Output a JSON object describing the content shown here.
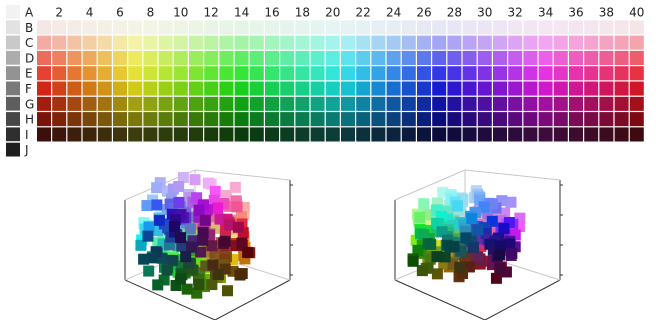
{
  "grid": {
    "row_labels": [
      "A",
      "B",
      "C",
      "D",
      "E",
      "F",
      "G",
      "H",
      "I",
      "J"
    ],
    "column_tick_labels": [
      "2",
      "4",
      "6",
      "8",
      "10",
      "12",
      "14",
      "16",
      "18",
      "20",
      "22",
      "24",
      "26",
      "28",
      "30",
      "32",
      "34",
      "36",
      "38",
      "40"
    ],
    "column_count": 40,
    "gray_column_colors": [
      "#f2f2f2",
      "#e2e2e2",
      "#c9c9c9",
      "#acacac",
      "#939393",
      "#7a7a7a",
      "#5e5e5e",
      "#474747",
      "#2f2f2f",
      "#1e1e1e"
    ],
    "color_rows": [
      {
        "row": "B",
        "hue_start": 5,
        "saturation": 38,
        "lightness": 93
      },
      {
        "row": "C",
        "hue_start": 5,
        "saturation": 78,
        "lightness": 80
      },
      {
        "row": "D",
        "hue_start": 5,
        "saturation": 80,
        "lightness": 65
      },
      {
        "row": "E",
        "hue_start": 5,
        "saturation": 78,
        "lightness": 55
      },
      {
        "row": "F",
        "hue_start": 5,
        "saturation": 80,
        "lightness": 45
      },
      {
        "row": "G",
        "hue_start": 5,
        "saturation": 82,
        "lightness": 35
      },
      {
        "row": "H",
        "hue_start": 5,
        "saturation": 85,
        "lightness": 26
      },
      {
        "row": "I",
        "hue_start": 5,
        "saturation": 70,
        "lightness": 14
      }
    ]
  },
  "plots_3d": [
    {
      "name": "color-solid-view-front"
    },
    {
      "name": "color-solid-view-side"
    }
  ]
}
